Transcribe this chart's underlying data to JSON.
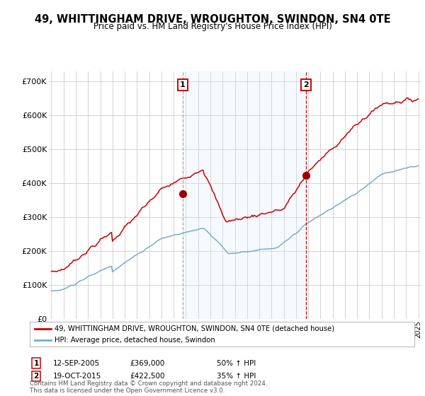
{
  "title": "49, WHITTINGHAM DRIVE, WROUGHTON, SWINDON, SN4 0TE",
  "subtitle": "Price paid vs. HM Land Registry's House Price Index (HPI)",
  "ylim": [
    0,
    730000
  ],
  "yticks": [
    0,
    100000,
    200000,
    300000,
    400000,
    500000,
    600000,
    700000
  ],
  "ytick_labels": [
    "£0",
    "£100K",
    "£200K",
    "£300K",
    "£400K",
    "£500K",
    "£600K",
    "£700K"
  ],
  "sale1_date": 2005.72,
  "sale1_price": 369000,
  "sale2_date": 2015.8,
  "sale2_price": 422500,
  "line_color_red": "#cc0000",
  "line_color_blue": "#7aabcf",
  "shade_color": "#ddeeff",
  "grid_color": "#cccccc",
  "background_color": "#ffffff",
  "legend_label_red": "49, WHITTINGHAM DRIVE, WROUGHTON, SWINDON, SN4 0TE (detached house)",
  "legend_label_blue": "HPI: Average price, detached house, Swindon",
  "annotation1_date": "12-SEP-2005",
  "annotation1_price": "£369,000",
  "annotation1_hpi": "50% ↑ HPI",
  "annotation2_date": "19-OCT-2015",
  "annotation2_price": "£422,500",
  "annotation2_hpi": "35% ↑ HPI",
  "footer": "Contains HM Land Registry data © Crown copyright and database right 2024.\nThis data is licensed under the Open Government Licence v3.0.",
  "title_fontsize": 10.5,
  "subtitle_fontsize": 8.5
}
